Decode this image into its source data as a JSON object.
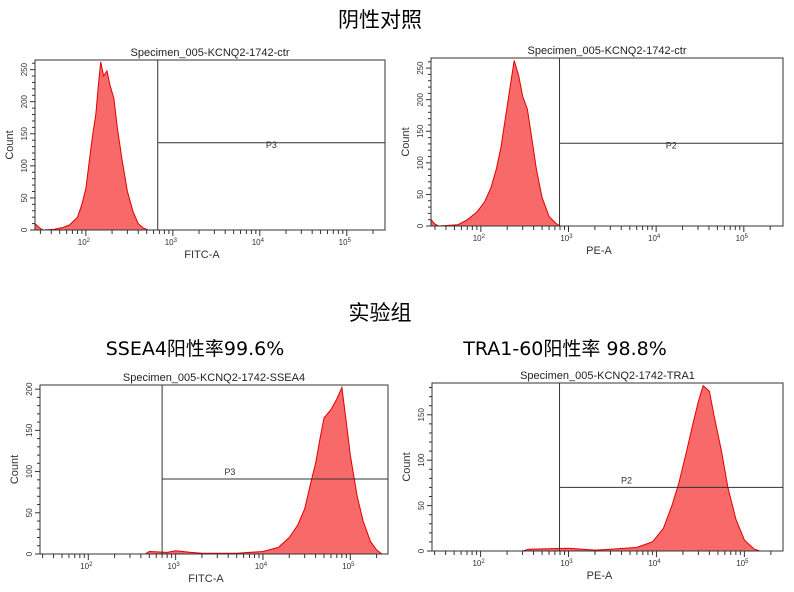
{
  "headings": {
    "negative_control": "阴性对照",
    "experimental": "实验组",
    "ssea4_rate": "SSEA4阳性率99.6%",
    "tra160_rate": "TRA1-60阳性率 98.8%"
  },
  "colors": {
    "fill": "#f86a6a",
    "outline": "#e00000",
    "gate": "#333333"
  },
  "chart_data": [
    {
      "type": "area",
      "title": "Specimen_005-KCNQ2-1742-ctr",
      "xlabel": "FITC-A",
      "ylabel": "Count",
      "xscale": "log",
      "xlim": [
        26,
        275000
      ],
      "ylim": [
        0,
        265
      ],
      "xticks": [
        "10^2",
        "10^3",
        "10^4",
        "10^5"
      ],
      "yticks": [
        0,
        50,
        100,
        150,
        200,
        250
      ],
      "gate": {
        "name": "P3",
        "x_start": 670,
        "count_level": 136
      },
      "points": [
        [
          26,
          10
        ],
        [
          29,
          4
        ],
        [
          32,
          0
        ],
        [
          43,
          1
        ],
        [
          55,
          4
        ],
        [
          65,
          8
        ],
        [
          80,
          20
        ],
        [
          90,
          40
        ],
        [
          100,
          65
        ],
        [
          110,
          110
        ],
        [
          120,
          150
        ],
        [
          130,
          180
        ],
        [
          140,
          230
        ],
        [
          148,
          262
        ],
        [
          160,
          240
        ],
        [
          175,
          248
        ],
        [
          190,
          225
        ],
        [
          210,
          205
        ],
        [
          230,
          160
        ],
        [
          260,
          110
        ],
        [
          300,
          60
        ],
        [
          350,
          28
        ],
        [
          400,
          10
        ],
        [
          460,
          3
        ],
        [
          520,
          0
        ]
      ]
    },
    {
      "type": "area",
      "title": "Specimen_005-KCNQ2-1742-ctr",
      "xlabel": "PE-A",
      "ylabel": "Count",
      "xscale": "log",
      "xlim": [
        27,
        280000
      ],
      "ylim": [
        0,
        266
      ],
      "xticks": [
        "10^2",
        "10^3",
        "10^4",
        "10^5"
      ],
      "yticks": [
        0,
        50,
        100,
        150,
        200,
        250
      ],
      "gate": {
        "name": "P2",
        "x_start": 790,
        "count_level": 131
      },
      "points": [
        [
          27,
          10
        ],
        [
          30,
          3
        ],
        [
          33,
          0
        ],
        [
          55,
          2
        ],
        [
          70,
          10
        ],
        [
          90,
          22
        ],
        [
          110,
          38
        ],
        [
          130,
          60
        ],
        [
          150,
          90
        ],
        [
          170,
          125
        ],
        [
          190,
          170
        ],
        [
          210,
          210
        ],
        [
          240,
          262
        ],
        [
          270,
          238
        ],
        [
          300,
          205
        ],
        [
          340,
          185
        ],
        [
          380,
          140
        ],
        [
          430,
          90
        ],
        [
          500,
          45
        ],
        [
          600,
          15
        ],
        [
          720,
          4
        ],
        [
          800,
          0
        ]
      ]
    },
    {
      "type": "area",
      "title": "Specimen_005-KCNQ2-1742-SSEA4",
      "xlabel": "FITC-A",
      "ylabel": "Count",
      "xscale": "log",
      "xlim": [
        28,
        270000
      ],
      "ylim": [
        0,
        205
      ],
      "xticks": [
        "10^2",
        "10^3",
        "10^4",
        "10^5"
      ],
      "yticks": [
        0,
        50,
        100,
        150,
        200
      ],
      "gate": {
        "name": "P3",
        "x_start": 700,
        "count_level": 91
      },
      "points": [
        [
          450,
          0
        ],
        [
          500,
          3
        ],
        [
          800,
          2
        ],
        [
          1000,
          4
        ],
        [
          1500,
          2
        ],
        [
          2000,
          1
        ],
        [
          5000,
          1
        ],
        [
          10000,
          3
        ],
        [
          15000,
          8
        ],
        [
          20000,
          20
        ],
        [
          25000,
          35
        ],
        [
          30000,
          55
        ],
        [
          35000,
          85
        ],
        [
          40000,
          110
        ],
        [
          45000,
          140
        ],
        [
          50000,
          165
        ],
        [
          60000,
          175
        ],
        [
          70000,
          188
        ],
        [
          80000,
          202
        ],
        [
          90000,
          160
        ],
        [
          100000,
          120
        ],
        [
          120000,
          70
        ],
        [
          140000,
          40
        ],
        [
          170000,
          15
        ],
        [
          200000,
          5
        ],
        [
          230000,
          0
        ]
      ]
    },
    {
      "type": "area",
      "title": "Specimen_005-KCNQ2-1742-TRA1",
      "xlabel": "PE-A",
      "ylabel": "Count",
      "xscale": "log",
      "xlim": [
        28,
        275000
      ],
      "ylim": [
        0,
        185
      ],
      "xticks": [
        "10^2",
        "10^3",
        "10^4",
        "10^5"
      ],
      "yticks": [
        0,
        50,
        100,
        150
      ],
      "gate": {
        "name": "P2",
        "x_start": 790,
        "count_level": 70
      },
      "points": [
        [
          300,
          0
        ],
        [
          350,
          2
        ],
        [
          1000,
          3
        ],
        [
          2000,
          1
        ],
        [
          3000,
          2
        ],
        [
          6000,
          4
        ],
        [
          9000,
          10
        ],
        [
          12000,
          25
        ],
        [
          15000,
          50
        ],
        [
          18000,
          75
        ],
        [
          22000,
          110
        ],
        [
          26000,
          140
        ],
        [
          30000,
          165
        ],
        [
          34000,
          182
        ],
        [
          40000,
          176
        ],
        [
          45000,
          150
        ],
        [
          55000,
          110
        ],
        [
          65000,
          70
        ],
        [
          80000,
          35
        ],
        [
          100000,
          12
        ],
        [
          130000,
          2
        ],
        [
          150000,
          0
        ]
      ]
    }
  ]
}
